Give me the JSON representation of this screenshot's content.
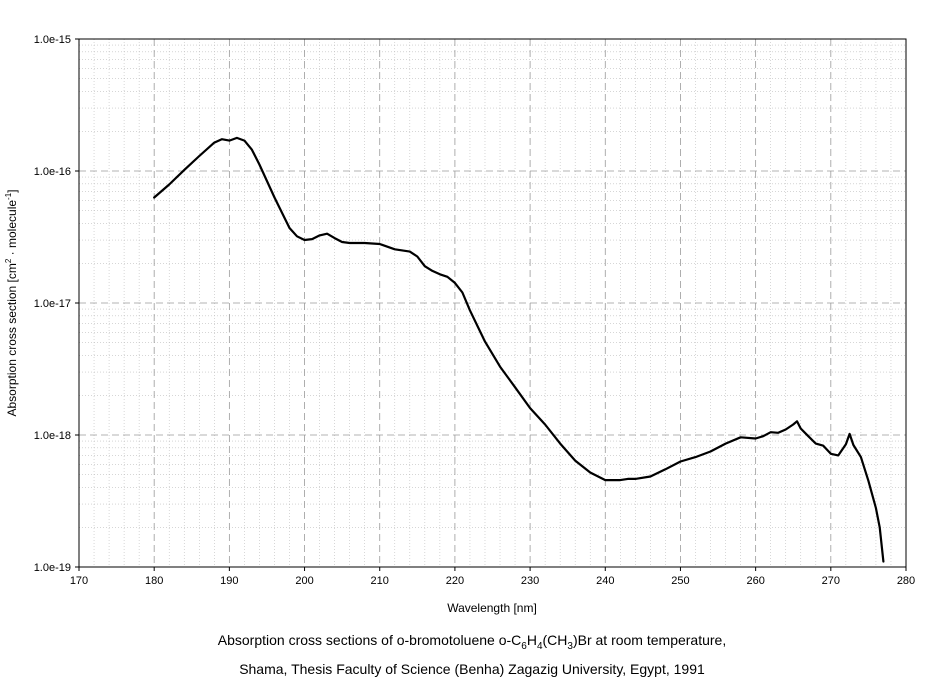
{
  "chart_data": {
    "type": "line",
    "scale_y": "log",
    "grid": true,
    "xlim": [
      170,
      280
    ],
    "ylim": [
      1e-19,
      1e-15
    ],
    "xticks": [
      "170",
      "180",
      "190",
      "200",
      "210",
      "220",
      "230",
      "240",
      "250",
      "260",
      "270",
      "280"
    ],
    "yticks": [
      "1.0e-19",
      "1.0e-18",
      "1.0e-17",
      "1.0e-16",
      "1.0e-15"
    ],
    "xlabel": "Wavelength [nm]",
    "ylabel_main": "Absorption cross section [cm",
    "ylabel_sup1": "2",
    "ylabel_mid": " · molecule",
    "ylabel_sup2": "-1",
    "ylabel_end": "]",
    "series": [
      {
        "color": "#000000",
        "x": [
          180,
          182,
          184,
          186,
          188,
          189,
          190,
          191,
          192,
          193,
          194,
          196,
          198,
          199,
          200,
          201,
          202,
          203,
          204,
          205,
          206,
          208,
          210,
          212,
          214,
          215,
          216,
          217,
          218,
          219,
          220,
          221,
          222,
          224,
          226,
          228,
          230,
          232,
          234,
          236,
          238,
          240,
          242,
          243,
          244,
          246,
          248,
          250,
          252,
          254,
          256,
          258,
          260,
          261,
          262,
          263,
          264,
          265,
          265.5,
          266,
          267,
          268,
          269,
          270,
          271,
          272,
          272.5,
          273,
          274,
          275,
          276,
          276.5,
          277
        ],
        "y": [
          6.3e-17,
          7.9e-17,
          1.02e-16,
          1.3e-16,
          1.64e-16,
          1.74e-16,
          1.7e-16,
          1.78e-16,
          1.7e-16,
          1.45e-16,
          1.12e-16,
          6.3e-17,
          3.7e-17,
          3.2e-17,
          3e-17,
          3.05e-17,
          3.25e-17,
          3.35e-17,
          3.1e-17,
          2.9e-17,
          2.85e-17,
          2.85e-17,
          2.8e-17,
          2.55e-17,
          2.45e-17,
          2.25e-17,
          1.9e-17,
          1.75e-17,
          1.65e-17,
          1.58e-17,
          1.42e-17,
          1.2e-17,
          8.8e-18,
          5.1e-18,
          3.3e-18,
          2.3e-18,
          1.6e-18,
          1.2e-18,
          8.6e-19,
          6.4e-19,
          5.2e-19,
          4.55e-19,
          4.55e-19,
          4.65e-19,
          4.65e-19,
          4.85e-19,
          5.5e-19,
          6.3e-19,
          6.8e-19,
          7.5e-19,
          8.6e-19,
          9.6e-19,
          9.4e-19,
          9.8e-19,
          1.05e-18,
          1.04e-18,
          1.1e-18,
          1.2e-18,
          1.27e-18,
          1.12e-18,
          9.8e-19,
          8.6e-19,
          8.3e-19,
          7.2e-19,
          7e-19,
          8.5e-19,
          1.02e-18,
          8.4e-19,
          6.8e-19,
          4.5e-19,
          2.8e-19,
          2e-19,
          1.1e-19
        ]
      }
    ]
  },
  "caption": {
    "line1_a": "Absorption cross sections of o-bromotoluene o-C",
    "sub1": "6",
    "line1_b": "H",
    "sub2": "4",
    "line1_c": "(CH",
    "sub3": "3",
    "line1_d": ")Br at room temperature,",
    "line2": "Shama, Thesis Faculty of Science (Benha) Zagazig University, Egypt, 1991"
  }
}
